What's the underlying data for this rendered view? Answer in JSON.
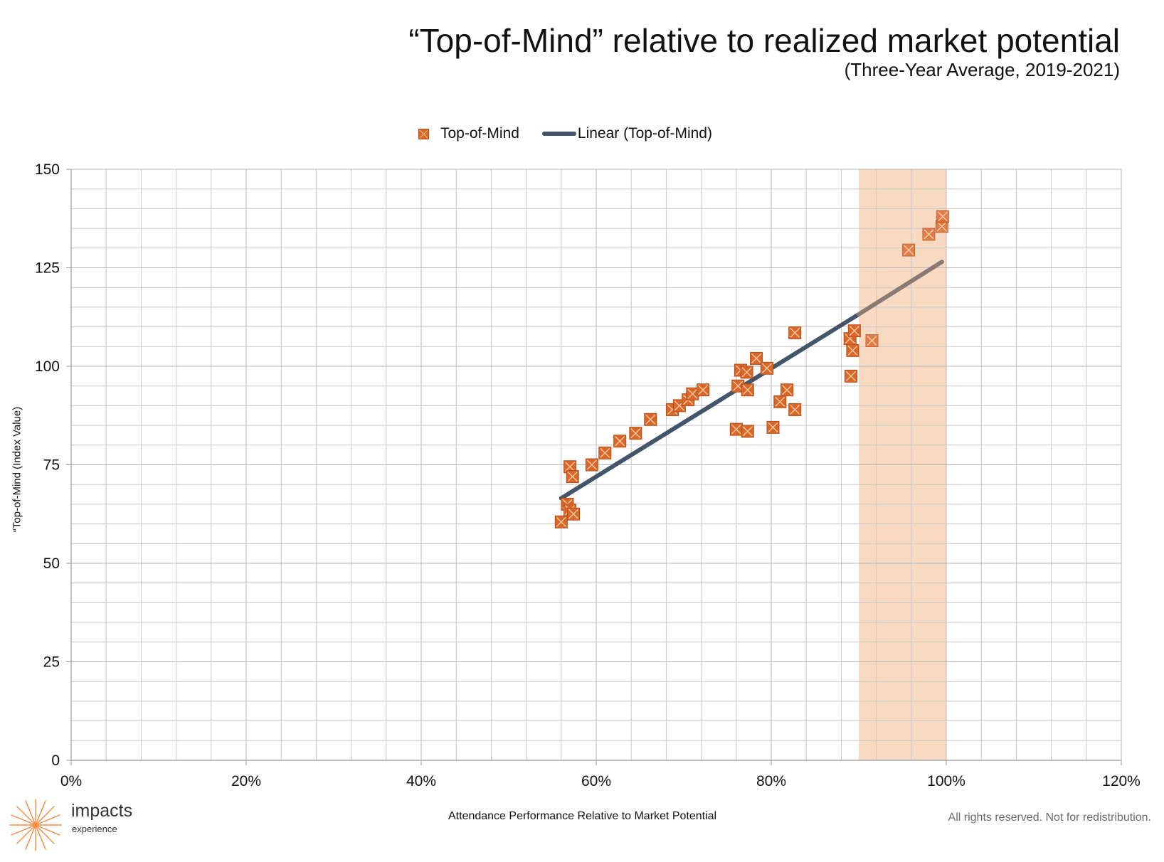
{
  "header": {
    "title": "“Top-of-Mind” relative to realized market potential",
    "subtitle": "(Three-Year Average, 2019-2021)"
  },
  "legend": {
    "series_label": "Top-of-Mind",
    "trend_label": "Linear (Top-of-Mind)"
  },
  "footer": {
    "rights": "All rights reserved. Not for redistribution."
  },
  "logo": {
    "wordmark": "impacts",
    "sub": "experience"
  },
  "icons": {
    "logo_mark": "starburst-icon",
    "legend_marker": "square-x-marker-icon"
  },
  "colors": {
    "marker_fill": "#d9672a",
    "marker_stroke": "#b8501a",
    "marker_x": "#f7caa0",
    "trend_line": "#44546a",
    "trend_line_in_band": "#8a7a72",
    "highlight_band": "#f7d3b9",
    "grid": "#c8c8c8",
    "logo": "#f58a42"
  },
  "chart_data": {
    "type": "scatter",
    "title": "“Top-of-Mind” relative to realized market potential",
    "subtitle": "(Three-Year Average, 2019-2021)",
    "xlabel": "Attendance Performance Relative to Market Potential",
    "ylabel": "“Top-of-Mind (Index Value)",
    "xlim": [
      0,
      1.2
    ],
    "ylim": [
      0,
      150
    ],
    "x_ticks": [
      0,
      0.2,
      0.4,
      0.6,
      0.8,
      1.0,
      1.2
    ],
    "x_tick_labels": [
      "0%",
      "20%",
      "40%",
      "60%",
      "80%",
      "100%",
      "120%"
    ],
    "y_ticks": [
      0,
      25,
      50,
      75,
      100,
      125,
      150
    ],
    "y_tick_labels": [
      "0",
      "25",
      "50",
      "75",
      "100",
      "125",
      "150"
    ],
    "grid": true,
    "legend_position": "top-center",
    "highlight_band": {
      "x_from": 0.9,
      "x_to": 1.0
    },
    "series": [
      {
        "name": "Top-of-Mind",
        "points": [
          [
            0.56,
            60.5
          ],
          [
            0.567,
            65.0
          ],
          [
            0.57,
            63.5
          ],
          [
            0.574,
            62.5
          ],
          [
            0.57,
            74.5
          ],
          [
            0.573,
            72.0
          ],
          [
            0.595,
            75.0
          ],
          [
            0.61,
            78.0
          ],
          [
            0.627,
            81.0
          ],
          [
            0.645,
            83.0
          ],
          [
            0.662,
            86.5
          ],
          [
            0.687,
            89.0
          ],
          [
            0.695,
            90.0
          ],
          [
            0.705,
            91.5
          ],
          [
            0.71,
            93.0
          ],
          [
            0.722,
            94.0
          ],
          [
            0.76,
            84.0
          ],
          [
            0.773,
            83.5
          ],
          [
            0.762,
            95.0
          ],
          [
            0.765,
            99.0
          ],
          [
            0.772,
            98.5
          ],
          [
            0.773,
            94.0
          ],
          [
            0.783,
            102.0
          ],
          [
            0.795,
            99.5
          ],
          [
            0.802,
            84.5
          ],
          [
            0.81,
            91.0
          ],
          [
            0.818,
            94.0
          ],
          [
            0.827,
            89.0
          ],
          [
            0.827,
            108.5
          ],
          [
            0.89,
            107.0
          ],
          [
            0.893,
            104.0
          ],
          [
            0.895,
            109.0
          ],
          [
            0.891,
            97.5
          ],
          [
            0.915,
            106.5
          ],
          [
            0.957,
            129.5
          ],
          [
            0.98,
            133.5
          ],
          [
            0.995,
            135.5
          ],
          [
            0.996,
            138.0
          ]
        ]
      },
      {
        "name": "Linear (Top-of-Mind)",
        "type": "line",
        "points": [
          [
            0.56,
            66.5
          ],
          [
            0.9,
            113.2
          ],
          [
            0.995,
            126.5
          ]
        ]
      }
    ]
  }
}
